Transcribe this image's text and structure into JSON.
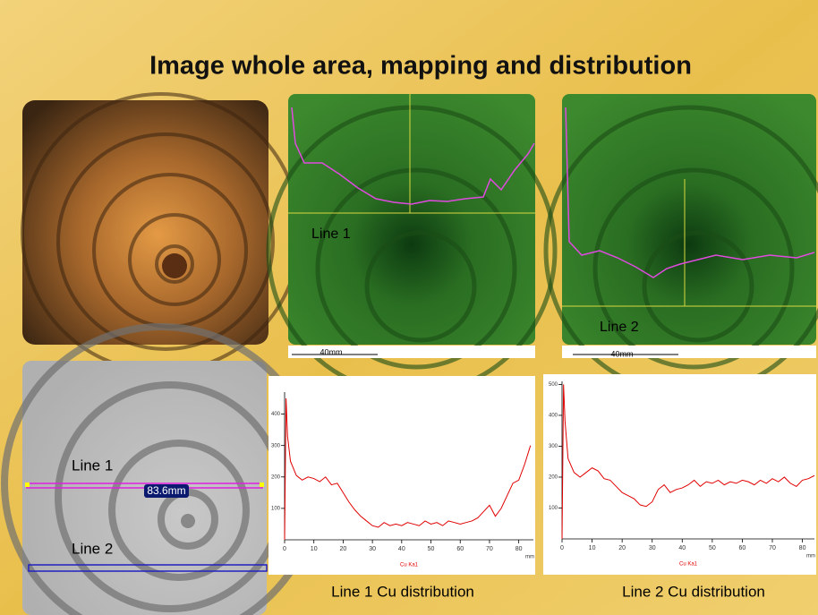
{
  "slide": {
    "title": "Image whole area, mapping and distribution",
    "map_labels": [
      "Line 1",
      "Line 2"
    ],
    "scale_bars": [
      "40mm",
      "40mm"
    ],
    "image_labels": [
      "Line 1",
      "Line 2"
    ],
    "measure": "83.6mm",
    "captions": [
      "Line 1 Cu distribution",
      "Line 2 Cu distribution"
    ]
  },
  "chart_data": [
    {
      "type": "line",
      "x": [
        0,
        0.5,
        1,
        2,
        4,
        6,
        8,
        10,
        12,
        14,
        16,
        18,
        20,
        22,
        24,
        26,
        28,
        30,
        32,
        34,
        36,
        38,
        40,
        42,
        44,
        46,
        48,
        50,
        52,
        54,
        56,
        58,
        60,
        62,
        64,
        66,
        68,
        70,
        72,
        74,
        76,
        78,
        80,
        82,
        84
      ],
      "series": [
        {
          "name": "Cu Ka1",
          "color": "#e00000",
          "values": [
            0,
            450,
            330,
            250,
            205,
            190,
            200,
            195,
            185,
            200,
            175,
            180,
            150,
            120,
            95,
            75,
            60,
            45,
            40,
            55,
            45,
            50,
            45,
            55,
            50,
            45,
            60,
            50,
            55,
            45,
            60,
            55,
            50,
            55,
            60,
            70,
            90,
            110,
            75,
            100,
            140,
            180,
            190,
            240,
            300
          ]
        }
      ],
      "xlabel": "mm",
      "xlim": [
        0,
        85
      ],
      "ylim": [
        0,
        470
      ],
      "xticks": [
        0,
        10,
        20,
        30,
        40,
        50,
        60,
        70,
        80
      ],
      "yticks": [
        100,
        200,
        300,
        400
      ]
    },
    {
      "type": "line",
      "x": [
        0,
        0.5,
        1,
        2,
        4,
        6,
        8,
        10,
        12,
        14,
        16,
        18,
        20,
        22,
        24,
        26,
        28,
        30,
        32,
        34,
        36,
        38,
        40,
        42,
        44,
        46,
        48,
        50,
        52,
        54,
        56,
        58,
        60,
        62,
        64,
        66,
        68,
        70,
        72,
        74,
        76,
        78,
        80,
        82,
        84
      ],
      "series": [
        {
          "name": "Cu Ka1",
          "color": "#e00000",
          "values": [
            0,
            500,
            380,
            260,
            215,
            200,
            215,
            230,
            220,
            195,
            190,
            170,
            150,
            140,
            130,
            110,
            105,
            120,
            160,
            175,
            150,
            160,
            165,
            175,
            190,
            170,
            185,
            180,
            190,
            175,
            185,
            180,
            190,
            185,
            175,
            190,
            180,
            195,
            185,
            200,
            180,
            170,
            190,
            195,
            205
          ]
        }
      ],
      "xlabel": "mm",
      "xlim": [
        0,
        84
      ],
      "ylim": [
        0,
        510
      ],
      "xticks": [
        0,
        10,
        20,
        30,
        40,
        50,
        60,
        70,
        80
      ],
      "yticks": [
        100,
        200,
        300,
        400,
        500
      ]
    }
  ]
}
